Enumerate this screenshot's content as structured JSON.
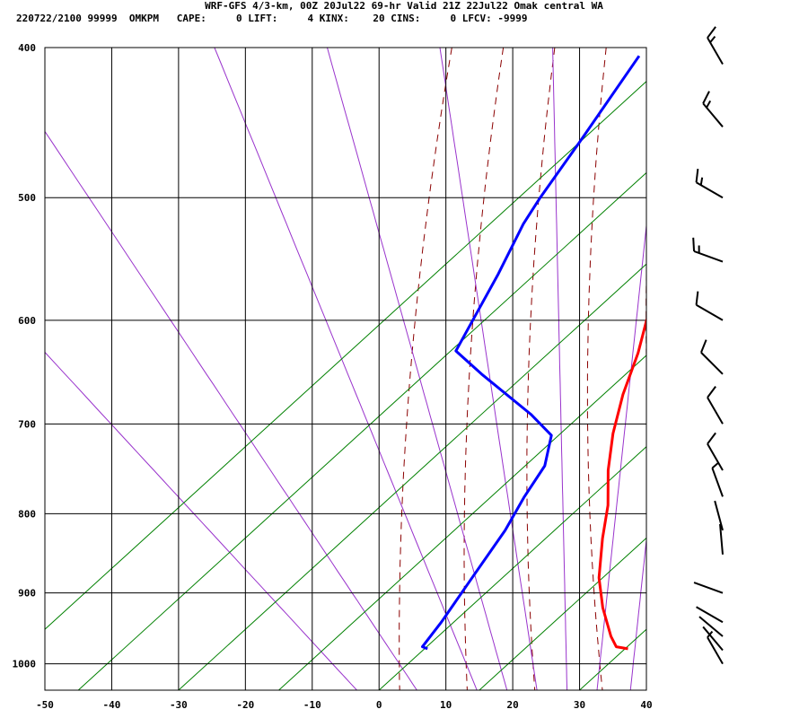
{
  "header": {
    "title": "WRF-GFS 4/3-km, 00Z 20Jul22 69-hr Valid 21Z 22Jul22 Omak central WA",
    "stats": "220722/2100 99999  OMKPM   CAPE:     0 LIFT:     4 KINX:    20 CINS:     0 LFCV: -9999"
  },
  "colors": {
    "temperature": "#ff0000",
    "dewpoint": "#0000ff",
    "dry_adiabat": "#8b0000",
    "moist_adiabat": "#9933cc",
    "mixing_ratio": "#008000",
    "grid": "#000000"
  },
  "chart_data": {
    "type": "line",
    "title": "",
    "xlabel": "",
    "ylabel": "",
    "xlim": [
      -50,
      40
    ],
    "ylim": [
      1040,
      400
    ],
    "x_ticks": [
      -50,
      -40,
      -30,
      -20,
      -10,
      0,
      10,
      20,
      30,
      40
    ],
    "y_ticks": [
      400,
      500,
      600,
      700,
      800,
      900,
      1000
    ],
    "log_pressure_axis": true,
    "grid": true,
    "series": [
      {
        "role": "temperature",
        "values": [
          {
            "p": 978,
            "t": 32.5
          },
          {
            "p": 975,
            "t": 30.5
          },
          {
            "p": 960,
            "t": 28.5
          },
          {
            "p": 920,
            "t": 24.0
          },
          {
            "p": 880,
            "t": 20.0
          },
          {
            "p": 830,
            "t": 16.0
          },
          {
            "p": 790,
            "t": 13.0
          },
          {
            "p": 750,
            "t": 9.0
          },
          {
            "p": 710,
            "t": 5.5
          },
          {
            "p": 670,
            "t": 2.5
          },
          {
            "p": 630,
            "t": 0.0
          },
          {
            "p": 600,
            "t": -2.5
          },
          {
            "p": 560,
            "t": -5.5
          },
          {
            "p": 520,
            "t": -8.5
          },
          {
            "p": 500,
            "t": -10.5
          },
          {
            "p": 470,
            "t": -13.5
          },
          {
            "p": 440,
            "t": -17.0
          },
          {
            "p": 405,
            "t": -20.5
          }
        ]
      },
      {
        "role": "dewpoint",
        "values": [
          {
            "p": 978,
            "t": 2.5
          },
          {
            "p": 975,
            "t": 1.5
          },
          {
            "p": 940,
            "t": 1.5
          },
          {
            "p": 880,
            "t": 1.0
          },
          {
            "p": 820,
            "t": 0.5
          },
          {
            "p": 780,
            "t": -0.5
          },
          {
            "p": 745,
            "t": -1.0
          },
          {
            "p": 712,
            "t": -3.5
          },
          {
            "p": 690,
            "t": -9.0
          },
          {
            "p": 650,
            "t": -21.0
          },
          {
            "p": 628,
            "t": -27.5
          },
          {
            "p": 600,
            "t": -28.5
          },
          {
            "p": 560,
            "t": -30.0
          },
          {
            "p": 520,
            "t": -32.0
          },
          {
            "p": 500,
            "t": -32.5
          },
          {
            "p": 460,
            "t": -33.0
          },
          {
            "p": 405,
            "t": -34.0
          }
        ]
      }
    ],
    "skew_lines": {
      "dry_adiabats_theta_c": [
        0,
        10,
        20,
        30,
        40,
        50,
        60,
        70,
        80,
        90,
        100
      ],
      "moist_adiabats_at_1000": [
        -10,
        0,
        10,
        15,
        20,
        25,
        30,
        35
      ],
      "mixing_ratio_at_1000": [
        -60,
        -45,
        -30,
        -15,
        0,
        15,
        30,
        45,
        60
      ]
    },
    "wind_barbs": [
      {
        "p": 410,
        "dir": 330,
        "kt": 15
      },
      {
        "p": 450,
        "dir": 320,
        "kt": 15
      },
      {
        "p": 500,
        "dir": 300,
        "kt": 15
      },
      {
        "p": 550,
        "dir": 290,
        "kt": 15
      },
      {
        "p": 600,
        "dir": 300,
        "kt": 10
      },
      {
        "p": 650,
        "dir": 315,
        "kt": 10
      },
      {
        "p": 700,
        "dir": 330,
        "kt": 10
      },
      {
        "p": 750,
        "dir": 330,
        "kt": 10
      },
      {
        "p": 780,
        "dir": 340,
        "kt": 5
      },
      {
        "p": 820,
        "dir": 345,
        "kt": 0
      },
      {
        "p": 850,
        "dir": 355,
        "kt": 0
      },
      {
        "p": 900,
        "dir": 290,
        "kt": 0
      },
      {
        "p": 940,
        "dir": 300,
        "kt": 0
      },
      {
        "p": 960,
        "dir": 310,
        "kt": 0
      },
      {
        "p": 980,
        "dir": 320,
        "kt": 0
      },
      {
        "p": 1000,
        "dir": 330,
        "kt": 5
      }
    ]
  }
}
